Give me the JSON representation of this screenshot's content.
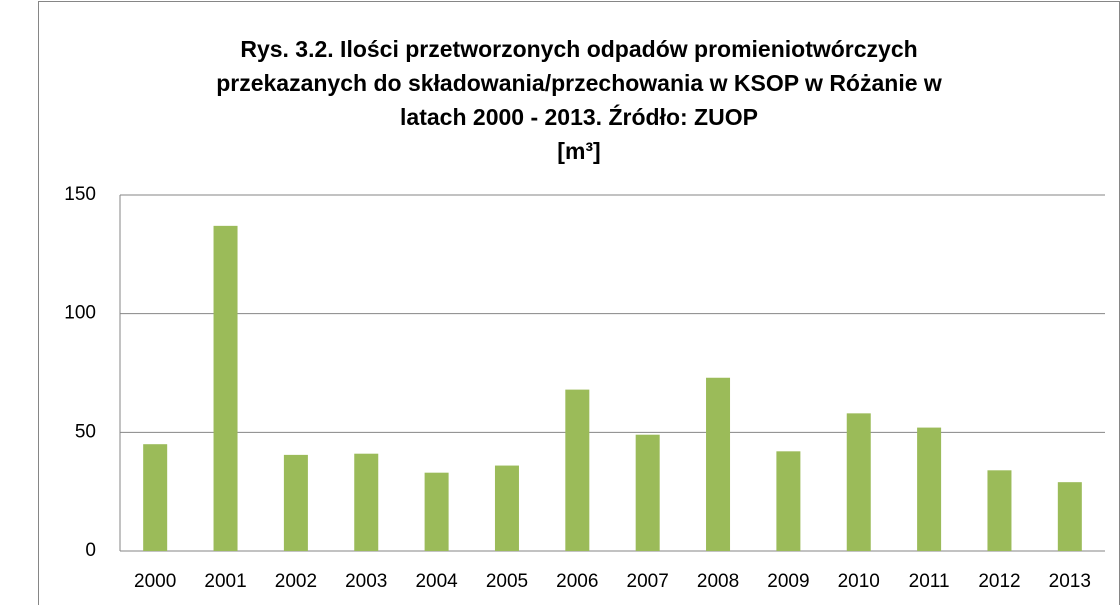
{
  "chart_data": {
    "type": "bar",
    "title": [
      "Rys. 3.2. Ilości przetworzonych odpadów promieniotwórczych",
      "przekazanych do składowania/przechowania w KSOP w Różanie w",
      "latach 2000 - 2013. Źródło: ZUOP",
      "[m³]"
    ],
    "categories": [
      "2000",
      "2001",
      "2002",
      "2003",
      "2004",
      "2005",
      "2006",
      "2007",
      "2008",
      "2009",
      "2010",
      "2011",
      "2012",
      "2013"
    ],
    "values": [
      45,
      137,
      40.5,
      41,
      33,
      36,
      68,
      49,
      73,
      42,
      58,
      52,
      34,
      29
    ],
    "color": "#9bbb59",
    "ylim": [
      0,
      150
    ],
    "yticks": [
      0,
      50,
      100,
      150
    ],
    "grid": true
  }
}
